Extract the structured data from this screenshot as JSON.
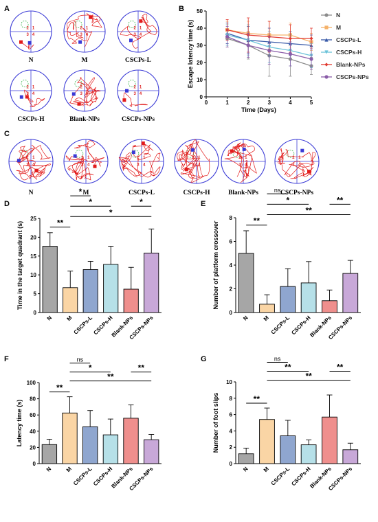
{
  "panel_letters": {
    "A": "A",
    "B": "B",
    "C": "C",
    "D": "D",
    "E": "E",
    "F": "F",
    "G": "G"
  },
  "colors": {
    "N": "#a6a6a6",
    "M": "#fad5a5",
    "CSCPs-L": "#8fa6cf",
    "CSCPs-H": "#b6e0e8",
    "Blank-NPs": "#ef8f8d",
    "CSCPs-NPs": "#c8a8d8",
    "path": "#e21b1b",
    "pool": "#3a3ad6",
    "platform": "#39b54a"
  },
  "icons": {
    "square": "square-marker",
    "circle": "circle-marker"
  },
  "pool_groups": [
    "N",
    "M",
    "CSCPs-L",
    "CSCPs-H",
    "Blank-NPs",
    "CSCPs-NPs"
  ],
  "quadrant_numbers": [
    "2",
    "1",
    "3",
    "4"
  ],
  "chart_data": [
    {
      "panel": "B",
      "type": "line",
      "x": [
        1,
        2,
        3,
        4,
        5
      ],
      "xlabel": "Time (Days)",
      "ylabel": "Escape latency time (s)",
      "xlim": [
        0,
        5
      ],
      "ylim": [
        0,
        50
      ],
      "xticks": [
        0,
        1,
        2,
        3,
        4,
        5
      ],
      "yticks": [
        0,
        10,
        20,
        30,
        40,
        50
      ],
      "legend_position": "right",
      "series": [
        {
          "name": "N",
          "marker": "circle",
          "values": [
            34,
            30,
            24,
            22,
            18
          ],
          "errors": [
            5,
            8,
            12,
            10,
            5
          ]
        },
        {
          "name": "M",
          "marker": "square",
          "values": [
            39,
            37,
            36,
            36,
            32
          ],
          "errors": [
            5,
            7,
            8,
            7,
            5
          ]
        },
        {
          "name": "CSCPs-L",
          "marker": "triangle",
          "values": [
            37,
            33,
            32,
            31,
            30
          ],
          "errors": [
            6,
            8,
            8,
            7,
            6
          ]
        },
        {
          "name": "CSCPs-H",
          "marker": "triangle-down",
          "values": [
            36,
            33,
            29,
            27,
            24
          ],
          "errors": [
            6,
            9,
            9,
            9,
            7
          ]
        },
        {
          "name": "Blank-NPs",
          "marker": "diamond",
          "values": [
            39,
            36,
            35,
            34,
            34
          ],
          "errors": [
            6,
            10,
            9,
            8,
            6
          ]
        },
        {
          "name": "CSCPs-NPs",
          "marker": "circle",
          "values": [
            35,
            30,
            27,
            25,
            22
          ],
          "errors": [
            6,
            7,
            8,
            7,
            6
          ]
        }
      ]
    },
    {
      "panel": "D",
      "type": "bar",
      "categories": [
        "N",
        "M",
        "CSCPs-L",
        "CSCPs-H",
        "Blank-NPs",
        "CSCPs-NPs"
      ],
      "values": [
        17.6,
        6.6,
        11.4,
        12.8,
        6.2,
        15.8
      ],
      "errors": [
        3.6,
        4.4,
        2.2,
        4.8,
        5.8,
        6.4
      ],
      "ylabel": "Time  in the target quadrant (s)",
      "ylim": [
        0,
        25
      ],
      "yticks": [
        0,
        5,
        10,
        15,
        20,
        25
      ],
      "significance": [
        {
          "from": 0,
          "to": 1,
          "label": "**"
        },
        {
          "from": 1,
          "to": 5,
          "label": "*"
        },
        {
          "from": 1,
          "to": 3,
          "label": "*"
        },
        {
          "from": 1,
          "to": 2,
          "label": "*"
        },
        {
          "from": 4,
          "to": 5,
          "label": "*"
        }
      ]
    },
    {
      "panel": "E",
      "type": "bar",
      "categories": [
        "N",
        "M",
        "CSCPs-L",
        "CSCPs-H",
        "Blank-NPs",
        "CSCPs-NPs"
      ],
      "values": [
        5.0,
        0.7,
        2.2,
        2.5,
        1.0,
        3.3
      ],
      "errors": [
        1.9,
        0.8,
        1.5,
        1.8,
        0.9,
        1.1
      ],
      "ylabel": "Number of platform crossover",
      "ylim": [
        0,
        8
      ],
      "yticks": [
        0,
        2,
        4,
        6,
        8
      ],
      "significance": [
        {
          "from": 0,
          "to": 1,
          "label": "**"
        },
        {
          "from": 1,
          "to": 5,
          "label": "**"
        },
        {
          "from": 1,
          "to": 3,
          "label": "*"
        },
        {
          "from": 1,
          "to": 2,
          "label": "ns"
        },
        {
          "from": 4,
          "to": 5,
          "label": "**"
        }
      ]
    },
    {
      "panel": "F",
      "type": "bar",
      "categories": [
        "N",
        "M",
        "CSCPs-L",
        "CSCPs-H",
        "Blank-NPs",
        "CSCPs-NPs"
      ],
      "values": [
        23.5,
        62.5,
        45.5,
        35.5,
        56.0,
        29.5
      ],
      "errors": [
        6.5,
        20,
        20,
        19.5,
        16.5,
        6.5
      ],
      "ylabel": "Latency time (s)",
      "ylim": [
        0,
        100
      ],
      "yticks": [
        0,
        20,
        40,
        60,
        80,
        100
      ],
      "significance": [
        {
          "from": 0,
          "to": 1,
          "label": "**"
        },
        {
          "from": 1,
          "to": 5,
          "label": "**"
        },
        {
          "from": 1,
          "to": 3,
          "label": "*"
        },
        {
          "from": 1,
          "to": 2,
          "label": "ns"
        },
        {
          "from": 4,
          "to": 5,
          "label": "**"
        }
      ]
    },
    {
      "panel": "G",
      "type": "bar",
      "categories": [
        "N",
        "M",
        "CSCPs-L",
        "CSCPs-H",
        "Blank-NPs",
        "CSCPs-NPs"
      ],
      "values": [
        1.2,
        5.4,
        3.4,
        2.3,
        5.7,
        1.7
      ],
      "errors": [
        0.7,
        1.4,
        1.9,
        0.6,
        2.7,
        0.8
      ],
      "ylabel": "Number of foot slips",
      "ylim": [
        0,
        10
      ],
      "yticks": [
        0,
        2,
        4,
        6,
        8,
        10
      ],
      "significance": [
        {
          "from": 0,
          "to": 1,
          "label": "**"
        },
        {
          "from": 1,
          "to": 5,
          "label": "**"
        },
        {
          "from": 1,
          "to": 3,
          "label": "**"
        },
        {
          "from": 1,
          "to": 2,
          "label": "ns"
        },
        {
          "from": 4,
          "to": 5,
          "label": "**"
        }
      ]
    }
  ]
}
